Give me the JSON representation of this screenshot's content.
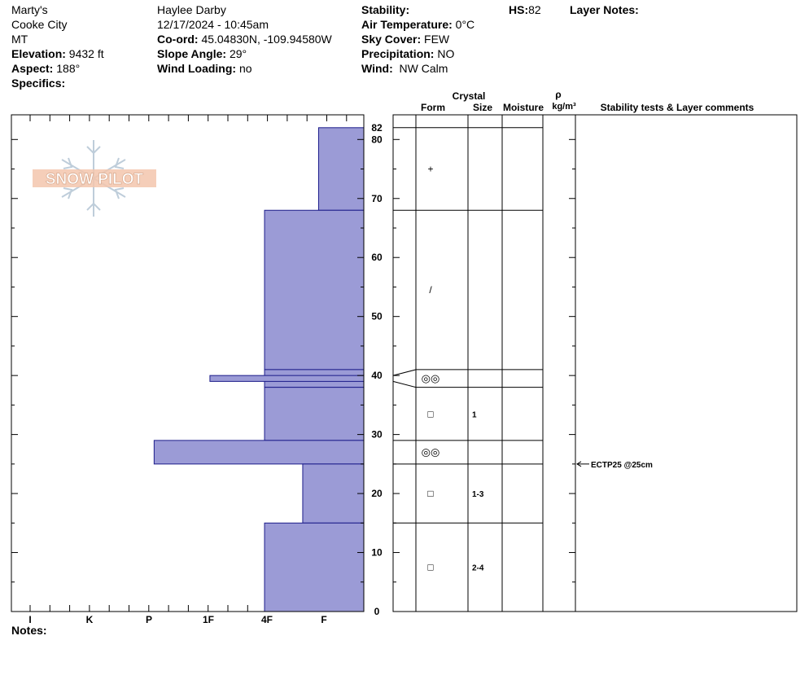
{
  "header": {
    "location": "Marty's",
    "region": "Cooke City",
    "state": "MT",
    "elevation_label": "Elevation:",
    "elevation": "9432 ft",
    "aspect_label": "Aspect:",
    "aspect": "188°",
    "specifics_label": "Specifics:",
    "observer": "Haylee Darby",
    "datetime": "12/17/2024 - 10:45am",
    "coord_label": "Co-ord:",
    "coord": "45.04830N, -109.94580W",
    "slope_label": "Slope Angle:",
    "slope": "29°",
    "windload_label": "Wind Loading:",
    "windload": "no",
    "stability_label": "Stability:",
    "airtemp_label": "Air Temperature:",
    "airtemp": "0°C",
    "sky_label": "Sky Cover:",
    "sky": "FEW",
    "precip_label": "Precipitation:",
    "precip": "NO",
    "wind_label": "Wind:",
    "wind": "NW Calm",
    "hs_label": "HS:",
    "hs": "82",
    "layer_notes_label": "Layer Notes:"
  },
  "logo_text": "SNOW PILOT",
  "columns": {
    "crystal": "Crystal",
    "form": "Form",
    "size": "Size",
    "moisture": "Moisture",
    "rho": "ρ",
    "density": "kg/m³",
    "stability": "Stability tests & Layer comments"
  },
  "notes_label": "Notes:",
  "colors": {
    "layer_fill": "#9b9bd6",
    "layer_stroke": "#1c1c8a"
  },
  "chart_data": {
    "type": "bar",
    "title": "",
    "hs": 82,
    "ylim": [
      0,
      82
    ],
    "y_ticks": [
      0,
      10,
      20,
      30,
      40,
      50,
      60,
      70,
      80
    ],
    "y_top_label": "82",
    "hardness_scale": [
      "I",
      "K",
      "P",
      "1F",
      "4F",
      "F"
    ],
    "layers": [
      {
        "top": 82,
        "bottom": 68,
        "hardness": 0.77,
        "form": "+",
        "size": ""
      },
      {
        "top": 68,
        "bottom": 41,
        "hardness": 1.69,
        "form": "/",
        "size": ""
      },
      {
        "top": 41,
        "bottom": 38,
        "hardness": 1.69,
        "form": "◎◎",
        "size": ""
      },
      {
        "top": 38,
        "bottom": 29,
        "hardness": 1.69,
        "form": "□",
        "size": "1"
      },
      {
        "top": 29,
        "bottom": 25,
        "hardness": 3.57,
        "form": "◎◎",
        "size": ""
      },
      {
        "top": 25,
        "bottom": 15,
        "hardness": 1.04,
        "form": "□",
        "size": "1-3"
      },
      {
        "top": 15,
        "bottom": 0,
        "hardness": 1.69,
        "form": "□",
        "size": "2-4"
      }
    ],
    "thin_layers": [
      {
        "top": 40,
        "bottom": 39,
        "hardness": 2.62
      }
    ],
    "stability_tests": [
      {
        "depth": 25,
        "label": "ECTP25 @25cm"
      }
    ]
  }
}
